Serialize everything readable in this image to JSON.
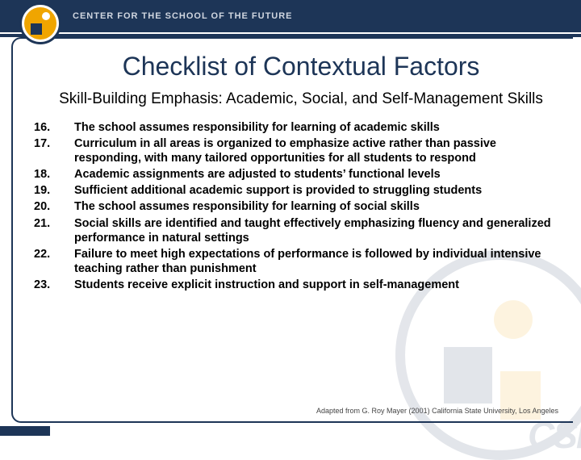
{
  "header": {
    "org_title": "CENTER FOR THE SCHOOL OF THE FUTURE"
  },
  "slide": {
    "title": "Checklist of Contextual Factors",
    "subtitle": "Skill-Building Emphasis: Academic, Social, and Self-Management Skills",
    "items": [
      {
        "num": "16.",
        "text": "The school assumes responsibility for learning of academic skills"
      },
      {
        "num": "17.",
        "text": "Curriculum in all areas is organized to emphasize active rather than passive responding, with many tailored opportunities for all students to respond"
      },
      {
        "num": "18.",
        "text": "Academic assignments are adjusted to students’ functional levels"
      },
      {
        "num": "19.",
        "text": "Sufficient additional academic support is provided to struggling students"
      },
      {
        "num": "20.",
        "text": "The school assumes responsibility for learning of social skills"
      },
      {
        "num": "21.",
        "text": "Social skills are identified and taught effectively emphasizing fluency and generalized performance in natural settings"
      },
      {
        "num": "22.",
        "text": "Failure to meet high expectations of performance is followed by individual intensive teaching rather than punishment"
      },
      {
        "num": "23.",
        "text": "Students receive explicit instruction and support in self-management"
      }
    ],
    "attribution": "Adapted from G. Roy Mayer (2001) California State University, Los Angeles"
  },
  "watermark": {
    "label": "CSF"
  },
  "colors": {
    "brand_navy": "#1d3557",
    "brand_gold": "#f0a500",
    "text": "#000000",
    "background": "#ffffff"
  }
}
